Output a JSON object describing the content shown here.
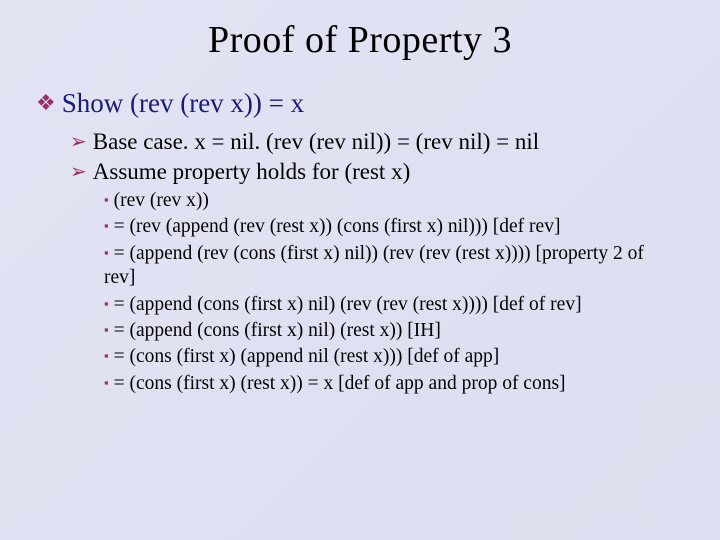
{
  "colors": {
    "accent_bullet": "#9a2f6a",
    "heading_text": "#1a1a7a",
    "body_text": "#000000",
    "bg_start": "#e2e4f4",
    "bg_end": "#dddff0"
  },
  "title": "Proof of Property 3",
  "l1": {
    "bullet": "❖",
    "text": "Show (rev (rev x)) = x"
  },
  "l2a": {
    "bullet": "➢",
    "text": "Base case.  x = nil. (rev (rev nil)) = (rev nil) = nil"
  },
  "l2b": {
    "bullet": "➢",
    "text": "Assume property holds for (rest x)"
  },
  "l3": {
    "bullet": "▪",
    "items": [
      "(rev (rev x))",
      "= (rev (append (rev (rest x)) (cons (first x) nil))) [def rev]",
      "= (append (rev (cons (first x) nil)) (rev (rev (rest x)))) [property 2 of rev]",
      "= (append (cons (first x) nil) (rev (rev (rest x)))) [def of rev]",
      "= (append (cons (first x) nil) (rest x)) [IH]",
      "= (cons (first x) (append nil (rest x))) [def of app]",
      "= (cons (first x) (rest x)) = x [def of app and prop of cons]"
    ]
  }
}
